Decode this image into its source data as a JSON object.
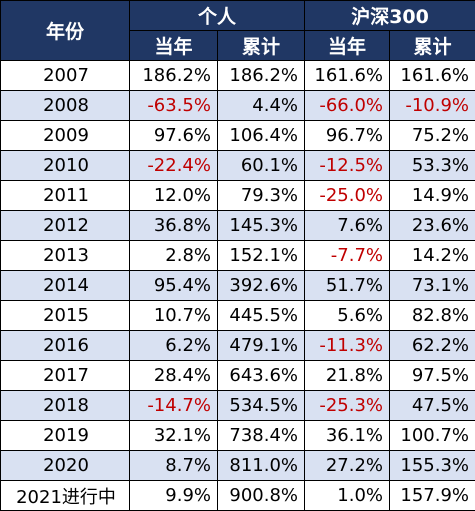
{
  "table": {
    "header_year": "年份",
    "group_individual": "个人",
    "group_index": "沪深300",
    "sub_headers": [
      "当年",
      "累计",
      "当年",
      "累计"
    ],
    "colors": {
      "header_bg": "#203764",
      "header_text": "#ffffff",
      "stripe": "#d9e1f2",
      "negative": "#c00000",
      "positive": "#000000"
    },
    "rows": [
      {
        "year": "2007",
        "ind_year": "186.2%",
        "ind_cum": "186.2%",
        "idx_year": "161.6%",
        "idx_cum": "161.6%"
      },
      {
        "year": "2008",
        "ind_year": "-63.5%",
        "ind_cum": "4.4%",
        "idx_year": "-66.0%",
        "idx_cum": "-10.9%"
      },
      {
        "year": "2009",
        "ind_year": "97.6%",
        "ind_cum": "106.4%",
        "idx_year": "96.7%",
        "idx_cum": "75.2%"
      },
      {
        "year": "2010",
        "ind_year": "-22.4%",
        "ind_cum": "60.1%",
        "idx_year": "-12.5%",
        "idx_cum": "53.3%"
      },
      {
        "year": "2011",
        "ind_year": "12.0%",
        "ind_cum": "79.3%",
        "idx_year": "-25.0%",
        "idx_cum": "14.9%"
      },
      {
        "year": "2012",
        "ind_year": "36.8%",
        "ind_cum": "145.3%",
        "idx_year": "7.6%",
        "idx_cum": "23.6%"
      },
      {
        "year": "2013",
        "ind_year": "2.8%",
        "ind_cum": "152.1%",
        "idx_year": "-7.7%",
        "idx_cum": "14.2%"
      },
      {
        "year": "2014",
        "ind_year": "95.4%",
        "ind_cum": "392.6%",
        "idx_year": "51.7%",
        "idx_cum": "73.1%"
      },
      {
        "year": "2015",
        "ind_year": "10.7%",
        "ind_cum": "445.5%",
        "idx_year": "5.6%",
        "idx_cum": "82.8%"
      },
      {
        "year": "2016",
        "ind_year": "6.2%",
        "ind_cum": "479.1%",
        "idx_year": "-11.3%",
        "idx_cum": "62.2%"
      },
      {
        "year": "2017",
        "ind_year": "28.4%",
        "ind_cum": "643.6%",
        "idx_year": "21.8%",
        "idx_cum": "97.5%"
      },
      {
        "year": "2018",
        "ind_year": "-14.7%",
        "ind_cum": "534.5%",
        "idx_year": "-25.3%",
        "idx_cum": "47.5%"
      },
      {
        "year": "2019",
        "ind_year": "32.1%",
        "ind_cum": "738.4%",
        "idx_year": "36.1%",
        "idx_cum": "100.7%"
      },
      {
        "year": "2020",
        "ind_year": "8.7%",
        "ind_cum": "811.0%",
        "idx_year": "27.2%",
        "idx_cum": "155.3%"
      },
      {
        "year": "2021进行中",
        "ind_year": "9.9%",
        "ind_cum": "900.8%",
        "idx_year": "1.0%",
        "idx_cum": "157.9%"
      }
    ]
  }
}
